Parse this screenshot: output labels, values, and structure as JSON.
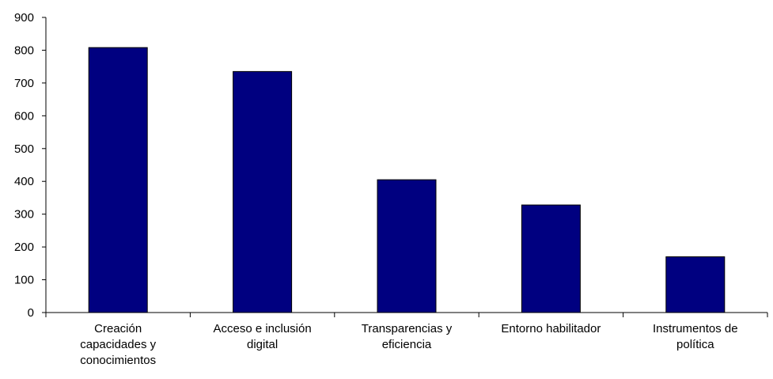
{
  "chart_data": {
    "type": "bar",
    "title": "",
    "xlabel": "",
    "ylabel": "",
    "categories": [
      [
        "Creación",
        "capacidades y",
        "conocimientos"
      ],
      [
        "Acceso e inclusión",
        "digital"
      ],
      [
        "Transparencias y",
        "eficiencia"
      ],
      [
        "Entorno habilitador"
      ],
      [
        "Instrumentos de",
        "política"
      ]
    ],
    "values": [
      808,
      735,
      405,
      328,
      170
    ],
    "ylim": [
      0,
      900
    ],
    "yticks": [
      0,
      100,
      200,
      300,
      400,
      500,
      600,
      700,
      800,
      900
    ],
    "grid": false,
    "legend": "none",
    "colors": {
      "bar": "#000080",
      "bar_edge": "#000000",
      "axis": "#000000"
    }
  }
}
